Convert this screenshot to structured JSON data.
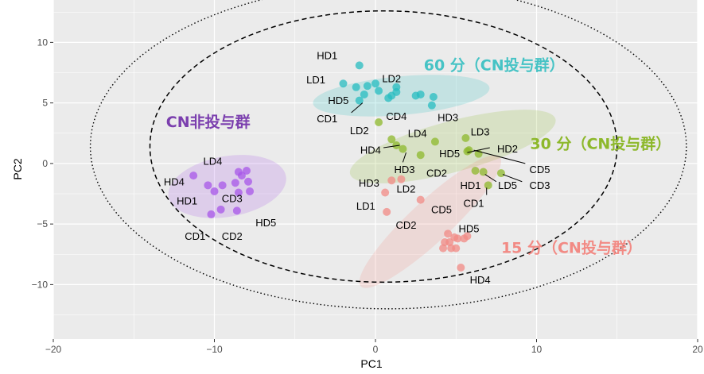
{
  "chart_data": {
    "type": "scatter",
    "xlabel": "PC1",
    "ylabel": "PC2",
    "xlim": [
      -20,
      20
    ],
    "ylim": [
      -14.5,
      13.5
    ],
    "x_ticks": [
      -20,
      -10,
      0,
      10,
      20
    ],
    "y_ticks": [
      -10,
      -5,
      0,
      5,
      10
    ],
    "x_tick_labels": [
      "−20",
      "−10",
      "0",
      "10",
      "20"
    ],
    "y_tick_labels": [
      "−10",
      "−5",
      "0",
      "5",
      "10"
    ],
    "grid": true,
    "background": "#ebebeb",
    "ellipses": [
      {
        "style": "dashed",
        "cx": 0.5,
        "cy": 1.4,
        "rx": 14.5,
        "ry": 11.2
      },
      {
        "style": "dotted",
        "cx": 0.8,
        "cy": 1.4,
        "rx": 18.5,
        "ry": 13.4
      }
    ],
    "groups": [
      {
        "name": "CN非投与群",
        "color": "#a755e8",
        "label_color": "#7b3fae",
        "label_pos": {
          "x": -13,
          "y": 3.4
        },
        "region": {
          "cx": -9.2,
          "cy": -1.9,
          "rx": 3.7,
          "ry": 2.5,
          "angle": -10
        },
        "points": [
          {
            "x": -11.3,
            "y": -1.0
          },
          {
            "x": -10.4,
            "y": -1.8
          },
          {
            "x": -10.0,
            "y": -2.3
          },
          {
            "x": -10.2,
            "y": -4.2
          },
          {
            "x": -9.6,
            "y": -3.8
          },
          {
            "x": -8.6,
            "y": -3.9
          },
          {
            "x": -8.0,
            "y": -0.6
          },
          {
            "x": -8.3,
            "y": -1.0
          },
          {
            "x": -8.7,
            "y": -1.6
          },
          {
            "x": -7.9,
            "y": -1.5
          },
          {
            "x": -7.8,
            "y": -2.3
          },
          {
            "x": -8.5,
            "y": -2.4
          },
          {
            "x": -9.5,
            "y": -1.8
          },
          {
            "x": -8.5,
            "y": -0.7
          }
        ],
        "labels": [
          {
            "text": "LD4",
            "x": -10.1,
            "y": 0.2
          },
          {
            "text": "HD4",
            "x": -12.5,
            "y": -1.5
          },
          {
            "text": "HD1",
            "x": -11.7,
            "y": -3.1
          },
          {
            "text": "CD3",
            "x": -8.9,
            "y": -2.9
          },
          {
            "text": "HD5",
            "x": -6.8,
            "y": -4.9
          },
          {
            "text": "CD1",
            "x": -11.2,
            "y": -6.0
          },
          {
            "text": "CD2",
            "x": -8.9,
            "y": -6.0
          }
        ]
      },
      {
        "name": "60 分（CN投与群）",
        "color": "#27bcc0",
        "label_color": "#46c3c5",
        "label_pos": {
          "x": 3,
          "y": 8.1
        },
        "region": {
          "cx": 1.6,
          "cy": 5.6,
          "rx": 5.5,
          "ry": 1.6,
          "angle": -5
        },
        "points": [
          {
            "x": -1.0,
            "y": 8.1
          },
          {
            "x": -2.0,
            "y": 6.6
          },
          {
            "x": -1.2,
            "y": 6.3
          },
          {
            "x": -0.5,
            "y": 6.4
          },
          {
            "x": 0.0,
            "y": 6.6
          },
          {
            "x": -1.0,
            "y": 5.2
          },
          {
            "x": -0.7,
            "y": 5.7
          },
          {
            "x": 0.2,
            "y": 6.0
          },
          {
            "x": 0.8,
            "y": 5.4
          },
          {
            "x": 1.0,
            "y": 5.6
          },
          {
            "x": 1.3,
            "y": 6.3
          },
          {
            "x": 1.3,
            "y": 5.9
          },
          {
            "x": 2.5,
            "y": 5.6
          },
          {
            "x": 2.8,
            "y": 5.7
          },
          {
            "x": 3.6,
            "y": 5.5
          },
          {
            "x": 3.5,
            "y": 4.8
          }
        ],
        "labels": [
          {
            "text": "HD1",
            "x": -3.0,
            "y": 8.9
          },
          {
            "text": "LD1",
            "x": -3.7,
            "y": 6.9
          },
          {
            "text": "LD2",
            "x": 1.0,
            "y": 7.0
          },
          {
            "text": "HD5",
            "x": -2.3,
            "y": 5.2
          },
          {
            "text": "CD1",
            "x": -3.0,
            "y": 3.7
          },
          {
            "text": "CD4",
            "x": 1.3,
            "y": 3.9
          },
          {
            "text": "HD3",
            "x": 4.5,
            "y": 3.8
          }
        ],
        "leaders": [
          {
            "x1": -1.5,
            "y1": 4.2,
            "x2": -0.8,
            "y2": 5.0
          }
        ]
      },
      {
        "name": "30 分（CN投与群）",
        "color": "#8db82b",
        "label_color": "#8db82b",
        "label_pos": {
          "x": 9.6,
          "y": 1.6
        },
        "region": {
          "cx": 4.8,
          "cy": 1.4,
          "rx": 6.6,
          "ry": 2.1,
          "angle": -15
        },
        "points": [
          {
            "x": 0.2,
            "y": 3.4
          },
          {
            "x": 1.0,
            "y": 2.0
          },
          {
            "x": 1.7,
            "y": 1.2
          },
          {
            "x": 1.3,
            "y": 1.5
          },
          {
            "x": 2.8,
            "y": 0.7
          },
          {
            "x": 3.7,
            "y": 1.8
          },
          {
            "x": 5.6,
            "y": 2.1
          },
          {
            "x": 5.8,
            "y": 1.1
          },
          {
            "x": 6.4,
            "y": 0.8
          },
          {
            "x": 6.2,
            "y": -0.6
          },
          {
            "x": 6.7,
            "y": -0.7
          },
          {
            "x": 7.0,
            "y": -1.8
          },
          {
            "x": 7.8,
            "y": -0.8
          },
          {
            "x": 5.7,
            "y": 1.0
          }
        ],
        "labels": [
          {
            "text": "LD2",
            "x": -1.0,
            "y": 2.7
          },
          {
            "text": "LD4",
            "x": 2.6,
            "y": 2.5
          },
          {
            "text": "LD3",
            "x": 6.5,
            "y": 2.6
          },
          {
            "text": "HD4",
            "x": -0.3,
            "y": 1.1
          },
          {
            "text": "HD5",
            "x": 4.6,
            "y": 0.8
          },
          {
            "text": "HD2",
            "x": 8.2,
            "y": 1.2
          },
          {
            "text": "HD3",
            "x": 1.8,
            "y": -0.5
          },
          {
            "text": "CD2",
            "x": 3.8,
            "y": -0.8
          },
          {
            "text": "CD5",
            "x": 10.2,
            "y": -0.5
          },
          {
            "text": "HD1",
            "x": 5.9,
            "y": -1.8
          },
          {
            "text": "LD5",
            "x": 8.2,
            "y": -1.8
          },
          {
            "text": "CD3",
            "x": 10.2,
            "y": -1.8
          },
          {
            "text": "CD1",
            "x": 6.1,
            "y": -3.3
          }
        ],
        "leaders": [
          {
            "x1": 0.5,
            "y1": 1.3,
            "x2": 1.5,
            "y2": 1.5
          },
          {
            "x1": 1.7,
            "y1": 0.1,
            "x2": 1.9,
            "y2": 0.9
          },
          {
            "x1": 5.7,
            "y1": 0.9,
            "x2": 7.1,
            "y2": 1.3
          },
          {
            "x1": 6.1,
            "y1": 1.1,
            "x2": 9.3,
            "y2": 0.0
          },
          {
            "x1": 6.8,
            "y1": -0.9,
            "x2": 7.5,
            "y2": -1.5
          },
          {
            "x1": 7.9,
            "y1": -0.9,
            "x2": 9.1,
            "y2": -1.5
          },
          {
            "x1": 6.9,
            "y1": -2.0,
            "x2": 6.9,
            "y2": -2.6
          }
        ]
      },
      {
        "name": "15 分（CN投与群）",
        "color": "#f28a84",
        "label_color": "#f28a84",
        "label_pos": {
          "x": 7.8,
          "y": -7.0
        },
        "region": {
          "cx": 3.4,
          "cy": -4.8,
          "rx": 5.9,
          "ry": 1.7,
          "angle": -43
        },
        "points": [
          {
            "x": 1.0,
            "y": -1.4
          },
          {
            "x": 1.6,
            "y": -1.3
          },
          {
            "x": 0.6,
            "y": -2.4
          },
          {
            "x": 0.7,
            "y": -4.0
          },
          {
            "x": 2.8,
            "y": -3.0
          },
          {
            "x": 4.5,
            "y": -5.8
          },
          {
            "x": 4.3,
            "y": -6.5
          },
          {
            "x": 4.9,
            "y": -6.1
          },
          {
            "x": 5.1,
            "y": -6.2
          },
          {
            "x": 5.5,
            "y": -6.2
          },
          {
            "x": 4.2,
            "y": -7.0
          },
          {
            "x": 4.6,
            "y": -6.5
          },
          {
            "x": 4.7,
            "y": -7.0
          },
          {
            "x": 5.0,
            "y": -7.0
          },
          {
            "x": 5.3,
            "y": -8.6
          },
          {
            "x": 5.7,
            "y": -6.0
          }
        ],
        "labels": [
          {
            "text": "HD3",
            "x": -0.4,
            "y": -1.6
          },
          {
            "text": "LD2",
            "x": 1.9,
            "y": -2.1
          },
          {
            "text": "LD1",
            "x": -0.6,
            "y": -3.5
          },
          {
            "text": "CD5",
            "x": 4.1,
            "y": -3.8
          },
          {
            "text": "CD2",
            "x": 1.9,
            "y": -5.1
          },
          {
            "text": "HD5",
            "x": 5.8,
            "y": -5.4
          },
          {
            "text": "HD4",
            "x": 6.5,
            "y": -9.6
          }
        ]
      }
    ]
  }
}
